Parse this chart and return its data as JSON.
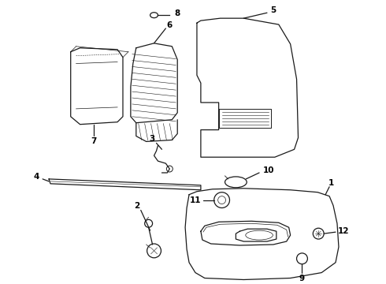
{
  "background_color": "#ffffff",
  "line_color": "#1a1a1a",
  "label_color": "#000000",
  "lw": 0.9,
  "figsize": [
    4.9,
    3.6
  ],
  "dpi": 100
}
